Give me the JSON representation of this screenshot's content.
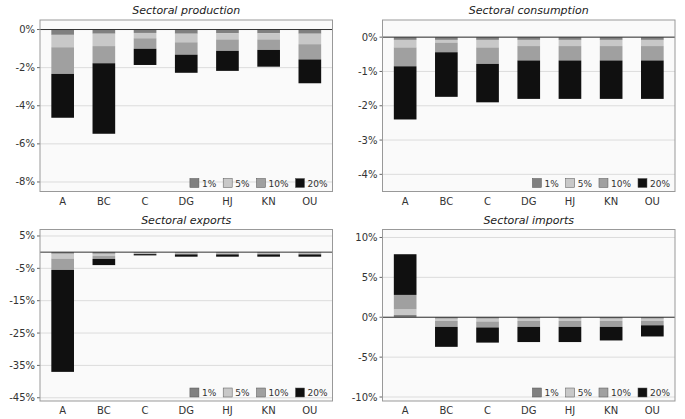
{
  "chart_data": [
    {
      "type": "bar",
      "stacked": true,
      "title": "Sectoral production",
      "categories": [
        "A",
        "BC",
        "C",
        "DG",
        "HJ",
        "KN",
        "OU"
      ],
      "series": [
        {
          "name": "1%",
          "color": "#808080",
          "values": [
            -0.28,
            -0.22,
            -0.18,
            -0.22,
            -0.2,
            -0.2,
            -0.22
          ]
        },
        {
          "name": "5%",
          "color": "#c8c8c8",
          "values": [
            -0.65,
            -0.65,
            -0.28,
            -0.45,
            -0.32,
            -0.32,
            -0.55
          ]
        },
        {
          "name": "10%",
          "color": "#a0a0a0",
          "values": [
            -1.4,
            -0.9,
            -0.55,
            -0.65,
            -0.6,
            -0.55,
            -0.8
          ]
        },
        {
          "name": "20%",
          "color": "#101010",
          "values": [
            -2.3,
            -3.7,
            -0.85,
            -0.95,
            -1.05,
            -0.88,
            -1.25
          ]
        }
      ],
      "ylim": [
        -8.5,
        0.5
      ],
      "yticks": [
        {
          "value": 0,
          "label": "0%"
        },
        {
          "value": -2,
          "label": "-2%"
        },
        {
          "value": -4,
          "label": "-4%"
        },
        {
          "value": -6,
          "label": "-6%"
        },
        {
          "value": -8,
          "label": "-8%"
        }
      ],
      "grid": true,
      "legend": "lower-right"
    },
    {
      "type": "bar",
      "stacked": true,
      "title": "Sectoral consumption",
      "categories": [
        "A",
        "BC",
        "C",
        "DG",
        "HJ",
        "KN",
        "OU"
      ],
      "series": [
        {
          "name": "1%",
          "color": "#808080",
          "values": [
            -0.08,
            -0.08,
            -0.08,
            -0.08,
            -0.08,
            -0.08,
            -0.08
          ]
        },
        {
          "name": "5%",
          "color": "#c8c8c8",
          "values": [
            -0.22,
            -0.08,
            -0.22,
            -0.18,
            -0.18,
            -0.18,
            -0.18
          ]
        },
        {
          "name": "10%",
          "color": "#a0a0a0",
          "values": [
            -0.55,
            -0.28,
            -0.48,
            -0.42,
            -0.42,
            -0.42,
            -0.42
          ]
        },
        {
          "name": "20%",
          "color": "#101010",
          "values": [
            -1.55,
            -1.3,
            -1.12,
            -1.12,
            -1.12,
            -1.12,
            -1.12
          ]
        }
      ],
      "ylim": [
        -4.5,
        0.5
      ],
      "yticks": [
        {
          "value": 0,
          "label": "0%"
        },
        {
          "value": -1,
          "label": "-1%"
        },
        {
          "value": -2,
          "label": "-2%"
        },
        {
          "value": -3,
          "label": "-3%"
        },
        {
          "value": -4,
          "label": "-4%"
        }
      ],
      "grid": true,
      "legend": "lower-right"
    },
    {
      "type": "bar",
      "stacked": true,
      "title": "Sectoral exports",
      "categories": [
        "A",
        "BC",
        "C",
        "DG",
        "HJ",
        "KN",
        "OU"
      ],
      "series": [
        {
          "name": "1%",
          "color": "#808080",
          "values": [
            -0.5,
            -0.5,
            -0.2,
            -0.2,
            -0.2,
            -0.2,
            -0.2
          ]
        },
        {
          "name": "5%",
          "color": "#c8c8c8",
          "values": [
            -1.5,
            -0.7,
            -0.2,
            -0.2,
            -0.2,
            -0.2,
            -0.2
          ]
        },
        {
          "name": "10%",
          "color": "#a0a0a0",
          "values": [
            -3.5,
            -0.9,
            -0.2,
            -0.3,
            -0.3,
            -0.3,
            -0.3
          ]
        },
        {
          "name": "20%",
          "color": "#101010",
          "values": [
            -31.5,
            -1.9,
            -0.4,
            -0.7,
            -0.7,
            -0.7,
            -0.7
          ]
        }
      ],
      "ylim": [
        -46,
        7
      ],
      "yticks": [
        {
          "value": 5,
          "label": "5%"
        },
        {
          "value": -5,
          "label": "-5%"
        },
        {
          "value": -15,
          "label": "-15%"
        },
        {
          "value": -25,
          "label": "-25%"
        },
        {
          "value": -35,
          "label": "-35%"
        },
        {
          "value": -45,
          "label": "-45%"
        }
      ],
      "grid": true,
      "legend": "lower-right"
    },
    {
      "type": "bar",
      "stacked": true,
      "title": "Sectoral imports",
      "categories": [
        "A",
        "BC",
        "C",
        "DG",
        "HJ",
        "KN",
        "OU"
      ],
      "series": [
        {
          "name": "1%",
          "color": "#808080",
          "values": [
            0.28,
            -0.18,
            -0.18,
            -0.18,
            -0.18,
            -0.18,
            -0.18
          ]
        },
        {
          "name": "5%",
          "color": "#c8c8c8",
          "values": [
            0.72,
            -0.28,
            -0.35,
            -0.28,
            -0.28,
            -0.28,
            -0.28
          ]
        },
        {
          "name": "10%",
          "color": "#a0a0a0",
          "values": [
            1.8,
            -0.75,
            -0.75,
            -0.75,
            -0.75,
            -0.75,
            -0.55
          ]
        },
        {
          "name": "20%",
          "color": "#101010",
          "values": [
            5.1,
            -2.5,
            -1.9,
            -1.9,
            -1.9,
            -1.7,
            -1.4
          ]
        }
      ],
      "ylim": [
        -10.5,
        11
      ],
      "yticks": [
        {
          "value": 10,
          "label": "10%"
        },
        {
          "value": 5,
          "label": "5%"
        },
        {
          "value": 0,
          "label": "0%"
        },
        {
          "value": -5,
          "label": "-5%"
        },
        {
          "value": -10,
          "label": "-10%"
        }
      ],
      "grid": true,
      "legend": "lower-right"
    }
  ]
}
